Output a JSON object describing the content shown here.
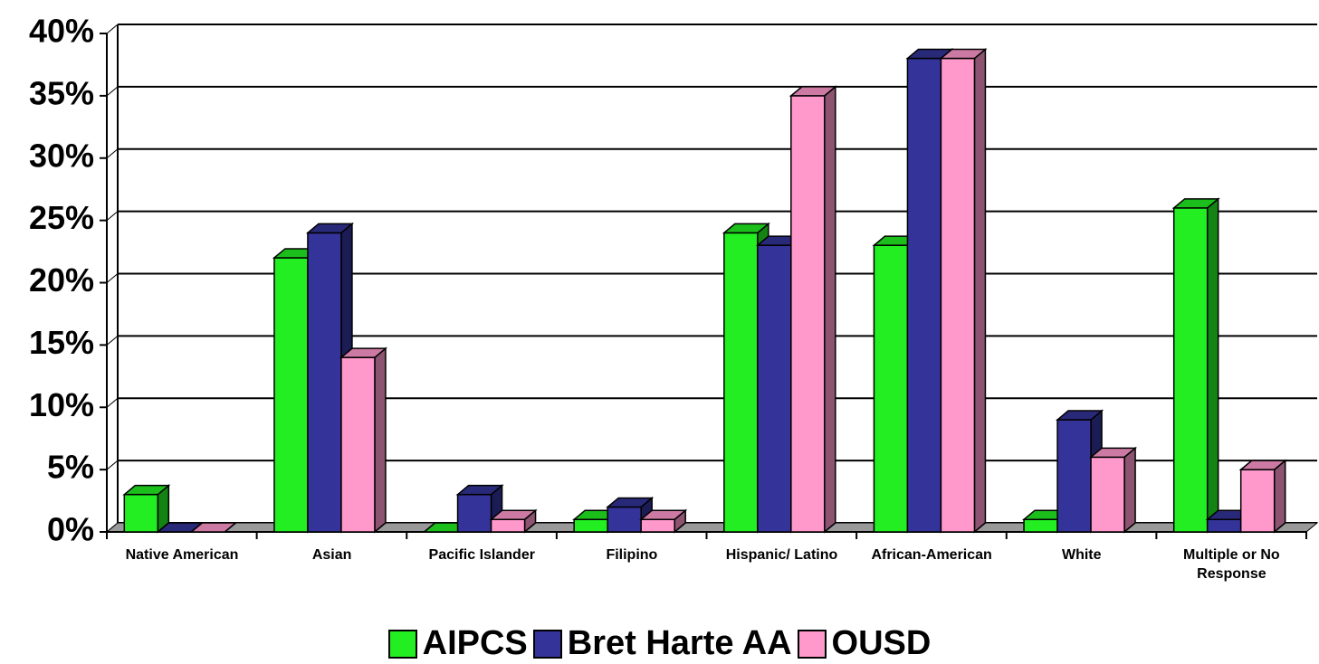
{
  "chart_data": {
    "type": "bar3d",
    "categories": [
      "Native American",
      "Asian",
      "Pacific Islander",
      "Filipino",
      "Hispanic/ Latino",
      "African-American",
      "White",
      "Multiple or No Response"
    ],
    "series": [
      {
        "name": "AIPCS",
        "color": "#22ee22",
        "values": [
          3,
          22,
          0,
          1,
          24,
          23,
          1,
          26
        ]
      },
      {
        "name": "Bret Harte AA",
        "color": "#333399",
        "values": [
          0,
          24,
          3,
          2,
          23,
          38,
          9,
          1
        ]
      },
      {
        "name": "OUSD",
        "color": "#ff99cc",
        "values": [
          0,
          14,
          1,
          1,
          35,
          38,
          6,
          5
        ]
      }
    ],
    "ylim": [
      0,
      40
    ],
    "yticks": [
      {
        "value": 0,
        "label": "0%"
      },
      {
        "value": 5,
        "label": "5%"
      },
      {
        "value": 10,
        "label": "10%"
      },
      {
        "value": 15,
        "label": "15%"
      },
      {
        "value": 20,
        "label": "20%"
      },
      {
        "value": 25,
        "label": "25%"
      },
      {
        "value": 30,
        "label": "30%"
      },
      {
        "value": 35,
        "label": "35%"
      },
      {
        "value": 40,
        "label": "40%"
      }
    ],
    "grid": true
  }
}
